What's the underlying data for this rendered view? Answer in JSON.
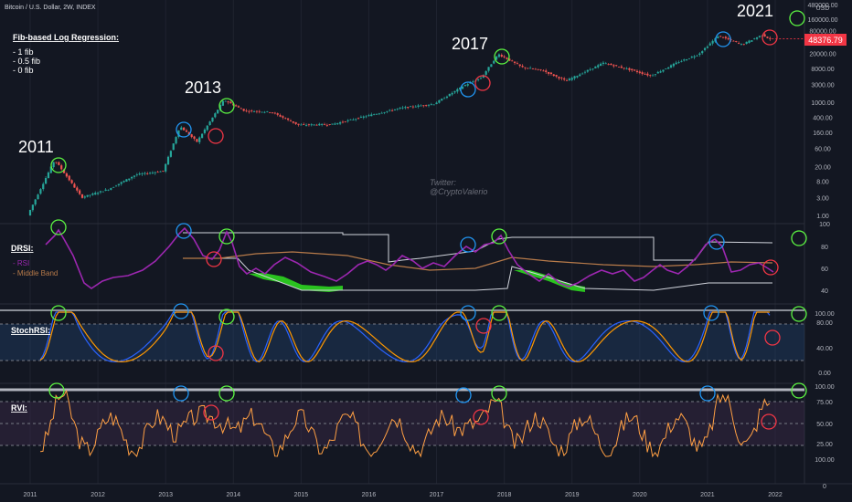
{
  "header": {
    "title": "Bitcoin / U.S. Dollar, 2W, INDEX"
  },
  "axis": {
    "price_unit": "USD",
    "price_ticks": [
      "480000.00",
      "160000.00",
      "80000.00",
      "48376.79",
      "20000.00",
      "8000.00",
      "3000.00",
      "1000.00",
      "400.00",
      "160.00",
      "60.00",
      "20.00",
      "8.00",
      "3.00",
      "1.00"
    ],
    "current_price": "48376.79",
    "years": [
      "2011",
      "2012",
      "2013",
      "2014",
      "2015",
      "2016",
      "2017",
      "2018",
      "2019",
      "2020",
      "2021",
      "2022"
    ]
  },
  "annotations": {
    "regression_title": "Fib-based Log Regression:",
    "regression_items": [
      "- 1 fib",
      "- 0.5 fib",
      "- 0 fib"
    ],
    "cycle_labels": [
      "2011",
      "2013",
      "2017",
      "2021"
    ],
    "watermark": [
      "Twitter:",
      "@CryptoValerio"
    ]
  },
  "panels": {
    "drsi": {
      "title": "DRSI:",
      "legend": [
        "- RSI",
        "- Middle Band"
      ],
      "ticks": [
        "100",
        "80",
        "60",
        "40"
      ]
    },
    "stochrsi": {
      "title": "StochRSI:",
      "ticks": [
        "100.00",
        "80.00",
        "40.00",
        "0.00"
      ]
    },
    "rvi": {
      "title": "RVI:",
      "ticks": [
        "100.00",
        "75.00",
        "50.00",
        "25.00",
        "100.00",
        "0"
      ]
    }
  },
  "colors": {
    "background": "#131722",
    "candle_up": "#26a69a",
    "candle_down": "#ef5350",
    "rsi": "#9c27b0",
    "middle_band": "#b87b4a",
    "band": "#d1d4dc",
    "cloud": "#2fe01f",
    "stoch_k": "#2962ff",
    "stoch_d": "#ff9800",
    "rvi": "#ff9f43",
    "top_circle": "#5cf542",
    "blue_circle": "#2196f3",
    "red_circle": "#f23645",
    "price_label": "#f23645"
  },
  "chart_data": {
    "type": "line",
    "title": "Bitcoin / U.S. Dollar, 2W, INDEX",
    "y_scale": "log",
    "ylim": [
      1,
      480000
    ],
    "x": [
      2011.0,
      2011.4,
      2011.8,
      2012.2,
      2012.6,
      2013.0,
      2013.25,
      2013.5,
      2013.9,
      2014.2,
      2014.6,
      2015.0,
      2015.5,
      2016.0,
      2016.5,
      2017.0,
      2017.45,
      2017.7,
      2017.95,
      2018.3,
      2018.6,
      2018.95,
      2019.5,
      2019.9,
      2020.2,
      2020.6,
      2020.9,
      2021.2,
      2021.55,
      2021.85,
      2021.95
    ],
    "y": [
      1.0,
      30,
      3,
      5,
      12,
      15,
      230,
      90,
      1150,
      600,
      550,
      250,
      260,
      430,
      700,
      900,
      2800,
      4500,
      19000,
      8500,
      7000,
      3700,
      11000,
      7300,
      5000,
      11500,
      18500,
      58000,
      34000,
      62000,
      48376.79
    ],
    "series": [
      {
        "name": "BTC/USD",
        "values": [
          1.0,
          30,
          3,
          5,
          12,
          15,
          230,
          90,
          1150,
          600,
          550,
          250,
          260,
          430,
          700,
          900,
          2800,
          4500,
          19000,
          8500,
          7000,
          3700,
          11000,
          7300,
          5000,
          11500,
          18500,
          58000,
          34000,
          62000,
          48376.79
        ]
      }
    ]
  }
}
